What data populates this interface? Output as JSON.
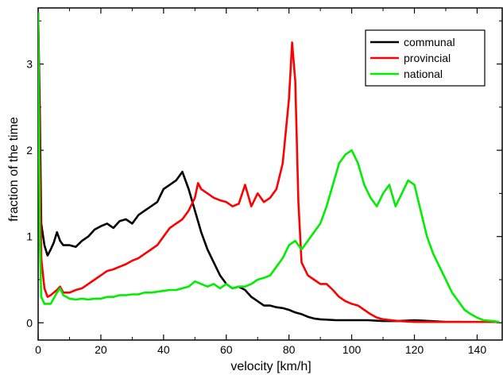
{
  "chart_data": {
    "type": "line",
    "xlabel": "velocity [km/h]",
    "ylabel": "fraction of the time",
    "xlim": [
      0,
      148
    ],
    "ylim": [
      -0.2,
      3.65
    ],
    "xticks": [
      0,
      20,
      40,
      60,
      80,
      100,
      120,
      140
    ],
    "yticks": [
      0,
      1,
      2,
      3
    ],
    "legend_position": "top-right",
    "series": [
      {
        "name": "communal",
        "color": "#000000",
        "points": [
          [
            0,
            3.6
          ],
          [
            0.5,
            2.5
          ],
          [
            1,
            1.15
          ],
          [
            2,
            0.9
          ],
          [
            3,
            0.78
          ],
          [
            4,
            0.85
          ],
          [
            5,
            0.93
          ],
          [
            6,
            1.05
          ],
          [
            7,
            0.95
          ],
          [
            8,
            0.9
          ],
          [
            10,
            0.9
          ],
          [
            12,
            0.88
          ],
          [
            14,
            0.95
          ],
          [
            16,
            1.0
          ],
          [
            18,
            1.08
          ],
          [
            20,
            1.12
          ],
          [
            22,
            1.15
          ],
          [
            24,
            1.1
          ],
          [
            26,
            1.18
          ],
          [
            28,
            1.2
          ],
          [
            30,
            1.15
          ],
          [
            32,
            1.25
          ],
          [
            34,
            1.3
          ],
          [
            36,
            1.35
          ],
          [
            38,
            1.4
          ],
          [
            40,
            1.55
          ],
          [
            42,
            1.6
          ],
          [
            44,
            1.65
          ],
          [
            46,
            1.75
          ],
          [
            48,
            1.55
          ],
          [
            50,
            1.3
          ],
          [
            52,
            1.05
          ],
          [
            54,
            0.85
          ],
          [
            56,
            0.7
          ],
          [
            58,
            0.55
          ],
          [
            60,
            0.45
          ],
          [
            62,
            0.4
          ],
          [
            64,
            0.42
          ],
          [
            66,
            0.38
          ],
          [
            68,
            0.3
          ],
          [
            70,
            0.25
          ],
          [
            72,
            0.2
          ],
          [
            74,
            0.2
          ],
          [
            76,
            0.18
          ],
          [
            78,
            0.17
          ],
          [
            80,
            0.15
          ],
          [
            82,
            0.12
          ],
          [
            84,
            0.1
          ],
          [
            86,
            0.07
          ],
          [
            88,
            0.05
          ],
          [
            90,
            0.04
          ],
          [
            95,
            0.03
          ],
          [
            100,
            0.03
          ],
          [
            105,
            0.03
          ],
          [
            110,
            0.02
          ],
          [
            115,
            0.02
          ],
          [
            120,
            0.03
          ],
          [
            125,
            0.02
          ],
          [
            130,
            0.01
          ],
          [
            135,
            0.01
          ]
        ]
      },
      {
        "name": "provincial",
        "color": "#ff0000",
        "points": [
          [
            0,
            3.6
          ],
          [
            0.5,
            2.0
          ],
          [
            1,
            0.75
          ],
          [
            2,
            0.4
          ],
          [
            3,
            0.3
          ],
          [
            4,
            0.32
          ],
          [
            5,
            0.35
          ],
          [
            6,
            0.38
          ],
          [
            7,
            0.42
          ],
          [
            8,
            0.35
          ],
          [
            10,
            0.35
          ],
          [
            12,
            0.38
          ],
          [
            14,
            0.4
          ],
          [
            16,
            0.45
          ],
          [
            18,
            0.5
          ],
          [
            20,
            0.55
          ],
          [
            22,
            0.6
          ],
          [
            24,
            0.62
          ],
          [
            26,
            0.65
          ],
          [
            28,
            0.68
          ],
          [
            30,
            0.72
          ],
          [
            32,
            0.75
          ],
          [
            34,
            0.8
          ],
          [
            36,
            0.85
          ],
          [
            38,
            0.9
          ],
          [
            40,
            1.0
          ],
          [
            42,
            1.1
          ],
          [
            44,
            1.15
          ],
          [
            46,
            1.2
          ],
          [
            48,
            1.3
          ],
          [
            50,
            1.45
          ],
          [
            51,
            1.62
          ],
          [
            52,
            1.55
          ],
          [
            54,
            1.5
          ],
          [
            56,
            1.45
          ],
          [
            58,
            1.42
          ],
          [
            60,
            1.4
          ],
          [
            62,
            1.35
          ],
          [
            64,
            1.38
          ],
          [
            66,
            1.6
          ],
          [
            68,
            1.35
          ],
          [
            70,
            1.5
          ],
          [
            72,
            1.4
          ],
          [
            74,
            1.45
          ],
          [
            76,
            1.55
          ],
          [
            78,
            1.85
          ],
          [
            80,
            2.6
          ],
          [
            81,
            3.25
          ],
          [
            82,
            2.8
          ],
          [
            83,
            1.4
          ],
          [
            84,
            0.7
          ],
          [
            86,
            0.55
          ],
          [
            88,
            0.5
          ],
          [
            90,
            0.45
          ],
          [
            92,
            0.45
          ],
          [
            94,
            0.38
          ],
          [
            96,
            0.3
          ],
          [
            98,
            0.25
          ],
          [
            100,
            0.22
          ],
          [
            102,
            0.2
          ],
          [
            104,
            0.15
          ],
          [
            106,
            0.1
          ],
          [
            108,
            0.06
          ],
          [
            110,
            0.04
          ],
          [
            115,
            0.02
          ],
          [
            120,
            0.01
          ],
          [
            125,
            0.01
          ],
          [
            130,
            0.01
          ],
          [
            140,
            0.01
          ],
          [
            147,
            0.01
          ]
        ]
      },
      {
        "name": "national",
        "color": "#00ee00",
        "points": [
          [
            0,
            3.6
          ],
          [
            0.5,
            1.0
          ],
          [
            1,
            0.3
          ],
          [
            2,
            0.22
          ],
          [
            4,
            0.22
          ],
          [
            6,
            0.35
          ],
          [
            7,
            0.4
          ],
          [
            8,
            0.32
          ],
          [
            10,
            0.28
          ],
          [
            12,
            0.27
          ],
          [
            14,
            0.28
          ],
          [
            16,
            0.27
          ],
          [
            18,
            0.28
          ],
          [
            20,
            0.28
          ],
          [
            22,
            0.3
          ],
          [
            24,
            0.3
          ],
          [
            26,
            0.32
          ],
          [
            28,
            0.32
          ],
          [
            30,
            0.33
          ],
          [
            32,
            0.33
          ],
          [
            34,
            0.35
          ],
          [
            36,
            0.35
          ],
          [
            38,
            0.36
          ],
          [
            40,
            0.37
          ],
          [
            42,
            0.38
          ],
          [
            44,
            0.38
          ],
          [
            46,
            0.4
          ],
          [
            48,
            0.42
          ],
          [
            50,
            0.48
          ],
          [
            52,
            0.45
          ],
          [
            54,
            0.42
          ],
          [
            56,
            0.45
          ],
          [
            58,
            0.4
          ],
          [
            60,
            0.45
          ],
          [
            62,
            0.4
          ],
          [
            64,
            0.42
          ],
          [
            66,
            0.42
          ],
          [
            68,
            0.45
          ],
          [
            70,
            0.5
          ],
          [
            72,
            0.52
          ],
          [
            74,
            0.55
          ],
          [
            76,
            0.65
          ],
          [
            78,
            0.75
          ],
          [
            80,
            0.9
          ],
          [
            82,
            0.95
          ],
          [
            84,
            0.85
          ],
          [
            86,
            0.95
          ],
          [
            88,
            1.05
          ],
          [
            90,
            1.15
          ],
          [
            92,
            1.35
          ],
          [
            94,
            1.6
          ],
          [
            96,
            1.85
          ],
          [
            98,
            1.95
          ],
          [
            100,
            2.0
          ],
          [
            102,
            1.85
          ],
          [
            104,
            1.6
          ],
          [
            106,
            1.45
          ],
          [
            108,
            1.35
          ],
          [
            110,
            1.5
          ],
          [
            112,
            1.6
          ],
          [
            114,
            1.35
          ],
          [
            116,
            1.5
          ],
          [
            118,
            1.65
          ],
          [
            120,
            1.6
          ],
          [
            122,
            1.3
          ],
          [
            124,
            1.0
          ],
          [
            126,
            0.8
          ],
          [
            128,
            0.65
          ],
          [
            130,
            0.5
          ],
          [
            132,
            0.35
          ],
          [
            134,
            0.25
          ],
          [
            136,
            0.15
          ],
          [
            138,
            0.1
          ],
          [
            140,
            0.06
          ],
          [
            142,
            0.03
          ],
          [
            145,
            0.02
          ],
          [
            147,
            0.01
          ]
        ]
      }
    ]
  }
}
